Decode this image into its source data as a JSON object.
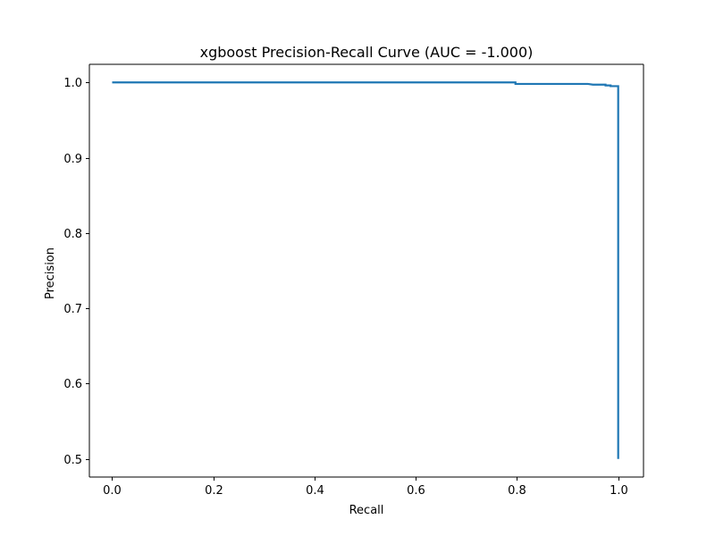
{
  "chart_data": {
    "type": "line",
    "title": "xgboost Precision-Recall Curve (AUC = -1.000)",
    "xlabel": "Recall",
    "ylabel": "Precision",
    "xlim": [
      -0.045,
      1.05
    ],
    "ylim": [
      0.476,
      1.024
    ],
    "x_ticks": [
      0.0,
      0.2,
      0.4,
      0.6,
      0.8,
      1.0
    ],
    "x_tick_labels": [
      "0.0",
      "0.2",
      "0.4",
      "0.6",
      "0.8",
      "1.0"
    ],
    "y_ticks": [
      0.5,
      0.6,
      0.7,
      0.8,
      0.9,
      1.0
    ],
    "y_tick_labels": [
      "0.5",
      "0.6",
      "0.7",
      "0.8",
      "0.9",
      "1.0"
    ],
    "grid": false,
    "legend": "none",
    "series": [
      {
        "color": "#1f77b4",
        "step": true,
        "x": [
          0.0,
          0.797,
          0.797,
          0.94,
          0.94,
          0.95,
          0.96,
          0.975,
          0.975,
          0.985,
          0.985,
          1.0,
          1.0
        ],
        "y": [
          1.0,
          1.0,
          0.998,
          0.998,
          0.998,
          0.997,
          0.997,
          0.997,
          0.996,
          0.996,
          0.995,
          0.995,
          0.5
        ]
      }
    ]
  }
}
